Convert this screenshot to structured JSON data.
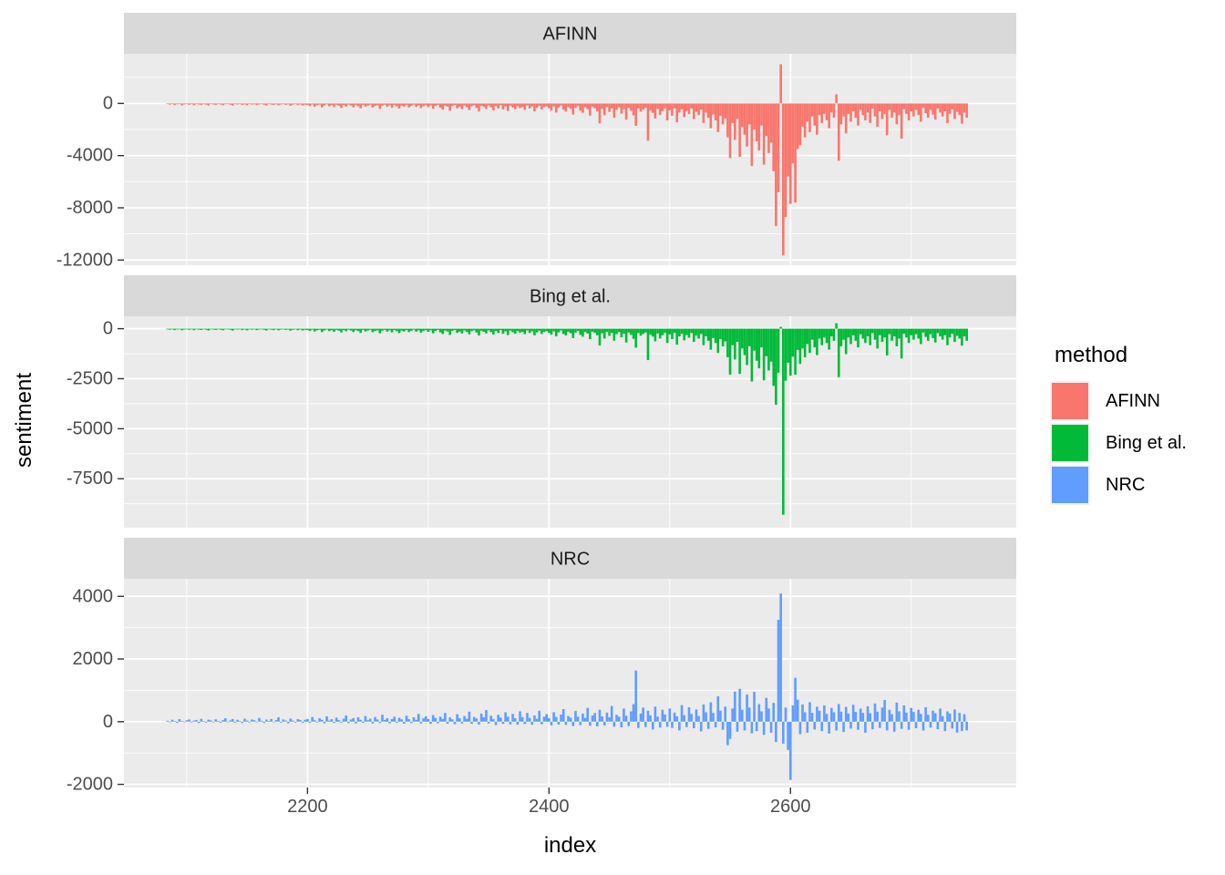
{
  "chart_data": {
    "type": "bar",
    "title": "",
    "xlabel": "index",
    "ylabel": "sentiment",
    "x": {
      "start": 2084,
      "step": 2,
      "lim": [
        2048,
        2787
      ],
      "major_ticks": [
        2200,
        2400,
        2600
      ],
      "minor_ticks": [
        2100,
        2300,
        2500,
        2700
      ]
    },
    "facets": [
      {
        "label": "AFINN",
        "color": "#F8766D",
        "ylim": [
          -12400,
          3800
        ],
        "yticks": [
          0,
          -4000,
          -8000,
          -12000
        ],
        "minor_yticks": [
          2000,
          -2000,
          -6000,
          -10000
        ],
        "values": [
          -40,
          -90,
          -25,
          -130,
          -60,
          -45,
          -150,
          -70,
          -30,
          -100,
          -55,
          -140,
          -35,
          -80,
          -120,
          -50,
          -90,
          -160,
          -45,
          -75,
          -110,
          -40,
          -85,
          -140,
          -60,
          -35,
          -95,
          -170,
          -55,
          -80,
          -45,
          -120,
          -70,
          -150,
          -40,
          -90,
          -60,
          -130,
          -75,
          -50,
          -100,
          -160,
          -45,
          -85,
          -125,
          -60,
          -140,
          -80,
          -55,
          -110,
          -70,
          -180,
          -90,
          -50,
          -130,
          -75,
          -160,
          -95,
          -120,
          -200,
          -80,
          -260,
          -140,
          -90,
          -310,
          -160,
          -70,
          -220,
          -130,
          -280,
          -100,
          -180,
          -350,
          -120,
          -240,
          -90,
          -160,
          -300,
          -130,
          -220,
          -380,
          -110,
          -250,
          -170,
          -90,
          -320,
          -200,
          -140,
          -420,
          -180,
          -100,
          -260,
          -150,
          -340,
          -120,
          -230,
          -400,
          -170,
          -250,
          -120,
          -310,
          -190,
          -90,
          -270,
          -150,
          -360,
          -210,
          -130,
          -280,
          -150,
          -420,
          -200,
          -110,
          -330,
          -480,
          -170,
          -250,
          -560,
          -190,
          -120,
          -380,
          -260,
          -440,
          -160,
          -290,
          -510,
          -220,
          -140,
          -350,
          -620,
          -180,
          -270,
          -430,
          -150,
          -310,
          -540,
          -200,
          -390,
          -130,
          -460,
          -240,
          -580,
          -170,
          -320,
          -450,
          -210,
          -360,
          -280,
          -500,
          -160,
          -390,
          -230,
          -610,
          -340,
          -180,
          -470,
          -290,
          -220,
          -380,
          -550,
          -240,
          -700,
          -330,
          -160,
          -480,
          -620,
          -280,
          -410,
          -850,
          -350,
          -190,
          -560,
          -720,
          -300,
          -440,
          -940,
          -260,
          -380,
          -600,
          -1530,
          -420,
          -900,
          -280,
          -650,
          -380,
          -1100,
          -500,
          -300,
          -780,
          -450,
          -1250,
          -350,
          -560,
          -920,
          -1720,
          -400,
          -640,
          -480,
          -350,
          -2860,
          -540,
          -720,
          -1150,
          -430,
          -890,
          -600,
          -380,
          -1300,
          -520,
          -950,
          -380,
          -1450,
          -700,
          -460,
          -1050,
          -580,
          -820,
          -390,
          -1200,
          -640,
          -900,
          -480,
          -1500,
          -700,
          -1100,
          -1900,
          -850,
          -1300,
          -2200,
          -950,
          -1600,
          -1150,
          -2600,
          -4190,
          -1500,
          -2800,
          -1200,
          -4100,
          -1800,
          -2400,
          -3300,
          -1600,
          -4800,
          -2000,
          -2900,
          -3600,
          -1700,
          -4700,
          -2500,
          -3800,
          -3000,
          -5200,
          -9400,
          -6800,
          3000,
          -11650,
          -8700,
          -5600,
          -7700,
          -4600,
          -7600,
          -3500,
          -3200,
          -1800,
          -2600,
          -1400,
          -2200,
          -1000,
          -1700,
          -2400,
          -900,
          -1500,
          -800,
          -1300,
          -1900,
          -700,
          -1100,
          690,
          -4400,
          -1600,
          -1000,
          -2300,
          -800,
          -1400,
          -600,
          -1100,
          -1700,
          -500,
          -900,
          -1300,
          -700,
          -1500,
          -400,
          -1000,
          -1800,
          -600,
          -1200,
          -800,
          -2440,
          -500,
          -1100,
          -700,
          -1600,
          -900,
          -2700,
          -450,
          -800,
          -1300,
          -600,
          -1000,
          -500,
          -900,
          -1400,
          -350,
          -750,
          -1100,
          -500,
          -850,
          -1250,
          -400,
          -700,
          -1000,
          -600,
          -1500,
          -800,
          -450,
          -1200,
          -650,
          -900,
          -1550,
          -700,
          -1100
        ]
      },
      {
        "label": "Bing et al.",
        "color": "#00BA38",
        "ylim": [
          -9950,
          620
        ],
        "yticks": [
          0,
          -2500,
          -5000,
          -7500
        ],
        "minor_yticks": [
          -1250,
          -3750,
          -6250,
          -8750
        ],
        "values": [
          -20,
          -50,
          -15,
          -70,
          -35,
          -25,
          -80,
          -40,
          -18,
          -55,
          -30,
          -75,
          -22,
          -45,
          -65,
          -28,
          -50,
          -90,
          -25,
          -40,
          -60,
          -22,
          -48,
          -78,
          -33,
          -19,
          -52,
          -95,
          -30,
          -44,
          -25,
          -68,
          -38,
          -82,
          -21,
          -50,
          -33,
          -72,
          -41,
          -27,
          -55,
          -88,
          -24,
          -47,
          -69,
          -33,
          -77,
          -44,
          -30,
          -61,
          -39,
          -98,
          -50,
          -27,
          -72,
          -41,
          -88,
          -52,
          -65,
          -110,
          -45,
          -140,
          -78,
          -50,
          -170,
          -88,
          -38,
          -120,
          -72,
          -155,
          -55,
          -100,
          -190,
          -66,
          -130,
          -50,
          -88,
          -165,
          -72,
          -120,
          -210,
          -60,
          -140,
          -95,
          -50,
          -175,
          -110,
          -78,
          -230,
          -100,
          -55,
          -145,
          -82,
          -185,
          -66,
          -125,
          -220,
          -95,
          -138,
          -66,
          -170,
          -105,
          -50,
          -148,
          -82,
          -198,
          -115,
          -72,
          -155,
          -82,
          -230,
          -110,
          -60,
          -180,
          -265,
          -95,
          -140,
          -310,
          -105,
          -66,
          -210,
          -145,
          -240,
          -88,
          -160,
          -280,
          -120,
          -77,
          -190,
          -340,
          -100,
          -150,
          -235,
          -82,
          -170,
          -300,
          -110,
          -215,
          -72,
          -255,
          -130,
          -320,
          -95,
          -175,
          -250,
          -115,
          -200,
          -155,
          -275,
          -88,
          -215,
          -125,
          -335,
          -185,
          -100,
          -260,
          -160,
          -120,
          -210,
          -300,
          -130,
          -385,
          -180,
          -90,
          -265,
          -340,
          -155,
          -225,
          -470,
          -190,
          -105,
          -310,
          -400,
          -165,
          -240,
          -520,
          -145,
          -210,
          -330,
          -840,
          -230,
          -495,
          -155,
          -360,
          -210,
          -600,
          -275,
          -165,
          -430,
          -250,
          -690,
          -190,
          -310,
          -505,
          -950,
          -220,
          -350,
          -265,
          -190,
          -1570,
          -300,
          -395,
          -630,
          -240,
          -490,
          -330,
          -210,
          -715,
          -285,
          -520,
          -210,
          -800,
          -385,
          -255,
          -580,
          -320,
          -450,
          -215,
          -660,
          -350,
          -495,
          -265,
          -825,
          -385,
          -605,
          -1050,
          -470,
          -715,
          -1210,
          -520,
          -880,
          -635,
          -1430,
          -2300,
          -825,
          -1540,
          -660,
          -2260,
          -990,
          -1320,
          -1820,
          -880,
          -2640,
          -1100,
          -1600,
          -1980,
          -935,
          -2580,
          -1375,
          -2090,
          -1650,
          -2860,
          -3800,
          -2200,
          90,
          -9300,
          -2600,
          -1700,
          -2350,
          -1400,
          -2300,
          -1060,
          -1760,
          -990,
          -1430,
          -770,
          -1210,
          -550,
          -935,
          -1320,
          -495,
          -825,
          -440,
          -715,
          -1045,
          -385,
          -605,
          270,
          -2420,
          -880,
          -550,
          -1270,
          -440,
          -770,
          -330,
          -605,
          -935,
          -275,
          -495,
          -715,
          -385,
          -825,
          -220,
          -550,
          -990,
          -330,
          -660,
          -440,
          -1340,
          -275,
          -605,
          -385,
          -880,
          -495,
          -1490,
          -250,
          -440,
          -715,
          -330,
          -550,
          -275,
          -495,
          -770,
          -190,
          -410,
          -605,
          -275,
          -470,
          -690,
          -220,
          -385,
          -550,
          -330,
          -825,
          -440,
          -250,
          -660,
          -360,
          -495,
          -850,
          -385,
          -605
        ]
      },
      {
        "label": "NRC",
        "color": "#619CFF",
        "ylim": [
          -2100,
          4560
        ],
        "yticks": [
          4000,
          2000,
          0,
          -2000
        ],
        "minor_yticks": [
          3000,
          1000,
          -1000
        ],
        "values": [
          30,
          -20,
          60,
          15,
          -35,
          80,
          25,
          -15,
          45,
          70,
          -25,
          35,
          55,
          -40,
          90,
          20,
          -30,
          65,
          40,
          -18,
          75,
          25,
          -35,
          50,
          110,
          -20,
          40,
          85,
          -30,
          60,
          20,
          -45,
          95,
          35,
          -25,
          70,
          45,
          -15,
          120,
          30,
          -40,
          65,
          25,
          85,
          -20,
          50,
          140,
          -30,
          70,
          35,
          -50,
          100,
          35,
          -25,
          80,
          55,
          -35,
          60,
          90,
          -35,
          150,
          45,
          -25,
          110,
          60,
          -50,
          170,
          35,
          80,
          -40,
          130,
          50,
          -30,
          95,
          200,
          -45,
          70,
          115,
          -55,
          140,
          60,
          -35,
          180,
          45,
          95,
          -60,
          150,
          70,
          -40,
          220,
          55,
          110,
          -50,
          85,
          160,
          -35,
          125,
          75,
          -65,
          190,
          80,
          -45,
          140,
          60,
          250,
          -55,
          105,
          170,
          85,
          -70,
          210,
          120,
          -50,
          160,
          90,
          280,
          -60,
          135,
          75,
          -80,
          240,
          110,
          -55,
          180,
          95,
          320,
          -65,
          150,
          100,
          -90,
          260,
          140,
          370,
          -60,
          190,
          85,
          -110,
          220,
          130,
          -70,
          300,
          160,
          -85,
          250,
          110,
          -95,
          330,
          145,
          -75,
          280,
          120,
          -100,
          200,
          90,
          350,
          -80,
          160,
          240,
          110,
          -120,
          300,
          150,
          -90,
          230,
          400,
          -100,
          180,
          130,
          -140,
          340,
          160,
          -110,
          260,
          120,
          440,
          -130,
          200,
          280,
          -150,
          380,
          170,
          -120,
          290,
          140,
          500,
          -160,
          220,
          160,
          -180,
          420,
          190,
          -140,
          330,
          560,
          1630,
          -200,
          260,
          450,
          -170,
          350,
          200,
          -250,
          480,
          160,
          -190,
          380,
          230,
          -160,
          420,
          -200,
          290,
          170,
          -280,
          530,
          210,
          -170,
          460,
          250,
          -210,
          390,
          180,
          -310,
          550,
          300,
          -230,
          620,
          280,
          -180,
          810,
          350,
          -260,
          480,
          -750,
          -550,
          420,
          960,
          -320,
          1050,
          380,
          -280,
          870,
          450,
          -370,
          950,
          -300,
          560,
          330,
          -420,
          760,
          420,
          -350,
          600,
          -650,
          3250,
          4090,
          -700,
          450,
          -900,
          -1860,
          520,
          1400,
          700,
          -400,
          550,
          300,
          -350,
          620,
          280,
          -250,
          480,
          350,
          -300,
          520,
          250,
          -380,
          440,
          300,
          -280,
          560,
          320,
          -330,
          470,
          260,
          -220,
          540,
          310,
          -260,
          420,
          280,
          -350,
          490,
          270,
          -240,
          580,
          320,
          -200,
          450,
          690,
          -280,
          380,
          240,
          -320,
          610,
          330,
          -230,
          520,
          290,
          -260,
          440,
          310,
          -210,
          380,
          250,
          -280,
          460,
          220,
          -190,
          350,
          270,
          -240,
          420,
          180,
          -300,
          330,
          260,
          -220,
          390,
          -350,
          280,
          -300,
          240,
          -280
        ]
      }
    ],
    "legend": {
      "title": "method",
      "position": "right",
      "entries": [
        {
          "label": "AFINN",
          "color": "#F8766D"
        },
        {
          "label": "Bing et al.",
          "color": "#00BA38"
        },
        {
          "label": "NRC",
          "color": "#619CFF"
        }
      ]
    },
    "theme": {
      "panel_bg": "#EBEBEB",
      "strip_bg": "#D9D9D9",
      "grid": "#FFFFFF",
      "axis_text": "#4D4D4D",
      "tick_mark": "#333333",
      "title_text": "#000000"
    }
  }
}
